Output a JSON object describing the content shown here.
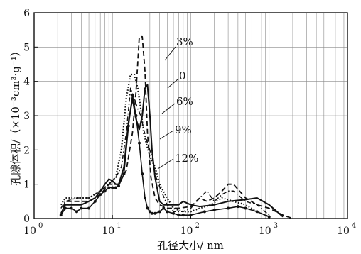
{
  "chart_data": {
    "type": "line",
    "xlabel": "孔径大小/ nm",
    "ylabel": "孔隙体积/（×10⁻³cm³·g⁻¹）",
    "xscale": "log",
    "xlim": [
      1,
      10000
    ],
    "ylim": [
      0,
      6
    ],
    "grid": true,
    "x_ticks": [
      {
        "value": 1,
        "mantissa": "10",
        "exp": "0"
      },
      {
        "value": 10,
        "mantissa": "10",
        "exp": "1"
      },
      {
        "value": 100,
        "mantissa": "10",
        "exp": "2"
      },
      {
        "value": 1000,
        "mantissa": "10",
        "exp": "3"
      },
      {
        "value": 10000,
        "mantissa": "10",
        "exp": "4"
      }
    ],
    "y_ticks": [
      0,
      1,
      2,
      3,
      4,
      5,
      6
    ],
    "series": [
      {
        "name": "3%",
        "style": "dashed",
        "x": [
          2.2,
          2.5,
          3.5,
          5,
          7,
          9,
          12,
          15,
          18,
          20,
          22,
          24,
          26,
          28,
          31,
          35,
          40,
          50,
          70,
          100,
          130,
          160,
          200,
          250,
          300,
          350,
          420,
          500,
          700,
          1000,
          1500,
          2000
        ],
        "y": [
          0.1,
          0.5,
          0.5,
          0.5,
          0.7,
          1.0,
          1.0,
          1.4,
          2.5,
          3.7,
          5.3,
          5.3,
          4.3,
          2.5,
          1.2,
          0.6,
          0.4,
          0.3,
          0.3,
          0.35,
          0.6,
          0.5,
          0.6,
          0.8,
          1.0,
          1.0,
          0.8,
          0.6,
          0.4,
          0.3,
          0.1,
          0.0
        ]
      },
      {
        "name": "0",
        "style": "solid",
        "x": [
          2.2,
          2.5,
          3,
          4,
          5,
          6,
          7,
          8,
          9,
          10,
          11,
          12,
          14,
          16,
          18,
          20,
          22,
          24,
          26,
          28,
          30,
          32,
          35,
          40,
          45,
          50,
          60,
          70,
          80,
          100,
          130,
          200,
          300,
          500,
          700,
          1000,
          1500
        ],
        "y": [
          0.15,
          0.4,
          0.4,
          0.4,
          0.5,
          0.6,
          0.8,
          1.0,
          1.15,
          1.1,
          1.0,
          1.0,
          1.5,
          2.8,
          3.5,
          2.9,
          2.6,
          3.0,
          3.8,
          3.9,
          3.0,
          2.0,
          1.2,
          0.5,
          0.4,
          0.4,
          0.4,
          0.4,
          0.5,
          0.4,
          0.35,
          0.4,
          0.5,
          0.55,
          0.6,
          0.4,
          0.05
        ]
      },
      {
        "name": "6%",
        "style": "dotted",
        "x": [
          2.2,
          2.5,
          3.5,
          5,
          7,
          9,
          11,
          13,
          15,
          17,
          19,
          21,
          23,
          25,
          27,
          30,
          35,
          40,
          50,
          60,
          80,
          100,
          130,
          180,
          250,
          350,
          500,
          700,
          1000
        ],
        "y": [
          0.4,
          0.6,
          0.6,
          0.6,
          0.8,
          1.0,
          1.2,
          2.0,
          3.5,
          4.2,
          4.2,
          3.8,
          3.2,
          2.5,
          2.2,
          1.8,
          1.5,
          1.0,
          0.6,
          0.3,
          0.2,
          0.2,
          0.3,
          0.4,
          0.6,
          0.5,
          0.4,
          0.2,
          0.05
        ]
      },
      {
        "name": "9%",
        "style": "dash-dot",
        "x": [
          2.2,
          2.5,
          3.5,
          5,
          7,
          9,
          11,
          13,
          15,
          17,
          19,
          21,
          23,
          25,
          28,
          32,
          36,
          42,
          50,
          60,
          80,
          100,
          130,
          160,
          200,
          250,
          300,
          350,
          500,
          700,
          1000
        ],
        "y": [
          0.3,
          0.5,
          0.6,
          0.6,
          0.8,
          1.0,
          1.2,
          1.5,
          2.5,
          3.8,
          3.5,
          3.2,
          3.0,
          2.6,
          2.2,
          1.8,
          1.2,
          0.8,
          0.4,
          0.2,
          0.2,
          0.3,
          0.6,
          0.8,
          0.5,
          0.7,
          0.8,
          0.8,
          0.5,
          0.4,
          0.1
        ]
      },
      {
        "name": "12%",
        "style": "solid-markers",
        "x": [
          2.2,
          2.5,
          3,
          3.5,
          4,
          5,
          6,
          7,
          8,
          9,
          10,
          11,
          12,
          14,
          16,
          18,
          20,
          22,
          24,
          26,
          28,
          30,
          32,
          35,
          40,
          45,
          50,
          60,
          70,
          80,
          100,
          150,
          200,
          300,
          400,
          500,
          700,
          1000
        ],
        "y": [
          0.1,
          0.3,
          0.3,
          0.2,
          0.3,
          0.3,
          0.5,
          0.7,
          0.8,
          0.9,
          0.9,
          0.9,
          0.95,
          1.3,
          2.7,
          3.6,
          3.0,
          2.2,
          1.3,
          0.6,
          0.3,
          0.2,
          0.15,
          0.15,
          0.2,
          0.3,
          0.2,
          0.15,
          0.1,
          0.1,
          0.1,
          0.2,
          0.25,
          0.3,
          0.35,
          0.3,
          0.2,
          0.05
        ]
      }
    ]
  }
}
